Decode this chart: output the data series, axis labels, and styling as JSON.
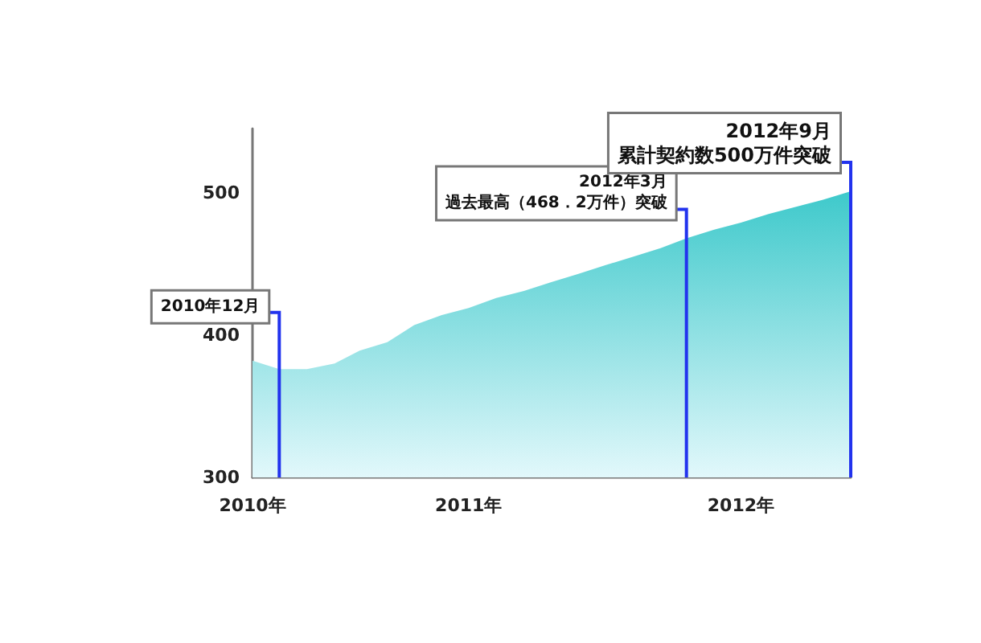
{
  "chart_data": {
    "type": "area",
    "x": [
      "2010-11",
      "2010-12",
      "2011-01",
      "2011-02",
      "2011-03",
      "2011-04",
      "2011-05",
      "2011-06",
      "2011-07",
      "2011-08",
      "2011-09",
      "2011-10",
      "2011-11",
      "2011-12",
      "2012-01",
      "2012-02",
      "2012-03",
      "2012-04",
      "2012-05",
      "2012-06",
      "2012-07",
      "2012-08",
      "2012-09"
    ],
    "values": [
      382,
      376,
      376,
      380,
      389,
      395,
      407,
      414,
      419,
      426,
      431,
      437,
      443,
      449,
      455,
      461,
      468,
      474,
      479,
      485,
      490,
      495,
      501
    ],
    "color": "#3ec9cb",
    "xlim": [
      "2010-11",
      "2012-09"
    ],
    "xticks": [
      {
        "value": "2010-11",
        "label": "2010年"
      },
      {
        "value": "2010-12",
        "label": null
      },
      {
        "value": "2011-01",
        "label": null
      },
      {
        "value": "2011-02",
        "label": null
      },
      {
        "value": "2011-03",
        "label": null
      },
      {
        "value": "2011-04",
        "label": null
      },
      {
        "value": "2011-05",
        "label": null
      },
      {
        "value": "2011-06",
        "label": null
      },
      {
        "value": "2011-07",
        "label": "2011年"
      },
      {
        "value": "2011-08",
        "label": null
      },
      {
        "value": "2011-09",
        "label": null
      },
      {
        "value": "2011-10",
        "label": null
      },
      {
        "value": "2011-11",
        "label": null
      },
      {
        "value": "2011-12",
        "label": null
      },
      {
        "value": "2012-01",
        "label": null
      },
      {
        "value": "2012-02",
        "label": null
      },
      {
        "value": "2012-03",
        "label": null
      },
      {
        "value": "2012-04",
        "label": null
      },
      {
        "value": "2012-05",
        "label": "2012年"
      },
      {
        "value": "2012-06",
        "label": null
      },
      {
        "value": "2012-07",
        "label": null
      },
      {
        "value": "2012-08",
        "label": null
      },
      {
        "value": "2012-09",
        "label": null
      }
    ],
    "ylim": [
      300,
      545
    ],
    "yticks": [
      300,
      400,
      500
    ],
    "grid": false,
    "ref_lines": [
      {
        "axis": "x",
        "value": "2010-12",
        "label": "2010年12月",
        "color": "#2233ee"
      },
      {
        "axis": "x",
        "value": "2012-03",
        "label": "2012年3月",
        "color": "#2233ee"
      },
      {
        "axis": "x",
        "value": "2012-09",
        "label": "2012年9月",
        "color": "#2233ee"
      }
    ],
    "annotations": [
      {
        "text": "過去最高（468．2万件）突破",
        "x": "2012-03"
      },
      {
        "text": "累計契約数500万件突破",
        "x": "2012-09"
      }
    ]
  }
}
